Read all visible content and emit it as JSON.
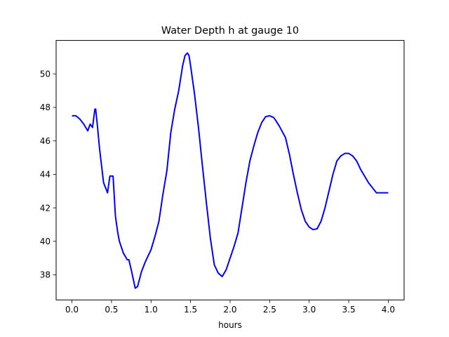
{
  "chart_data": {
    "type": "line",
    "title": "Water Depth h at gauge 10",
    "xlabel": "hours",
    "ylabel": "",
    "xlim": [
      -0.2,
      4.2
    ],
    "ylim": [
      36.5,
      52
    ],
    "xticks": [
      0.0,
      0.5,
      1.0,
      1.5,
      2.0,
      2.5,
      3.0,
      3.5,
      4.0
    ],
    "xtick_labels": [
      "0.0",
      "0.5",
      "1.0",
      "1.5",
      "2.0",
      "2.5",
      "3.0",
      "3.5",
      "4.0"
    ],
    "yticks": [
      38,
      40,
      42,
      44,
      46,
      48,
      50
    ],
    "ytick_labels": [
      "38",
      "40",
      "42",
      "44",
      "46",
      "48",
      "50"
    ],
    "grid": false,
    "series": [
      {
        "color": "#0000ff",
        "x": [
          0.0,
          0.05,
          0.1,
          0.15,
          0.2,
          0.23,
          0.26,
          0.29,
          0.3,
          0.32,
          0.35,
          0.4,
          0.45,
          0.48,
          0.52,
          0.55,
          0.58,
          0.6,
          0.65,
          0.7,
          0.72,
          0.75,
          0.8,
          0.83,
          0.88,
          0.93,
          1.0,
          1.05,
          1.1,
          1.15,
          1.2,
          1.25,
          1.3,
          1.35,
          1.4,
          1.43,
          1.46,
          1.48,
          1.5,
          1.55,
          1.6,
          1.65,
          1.7,
          1.75,
          1.8,
          1.85,
          1.9,
          1.95,
          2.0,
          2.05,
          2.1,
          2.15,
          2.2,
          2.25,
          2.3,
          2.35,
          2.4,
          2.45,
          2.5,
          2.55,
          2.58,
          2.62,
          2.7,
          2.75,
          2.8,
          2.85,
          2.9,
          2.95,
          3.0,
          3.05,
          3.1,
          3.15,
          3.2,
          3.25,
          3.3,
          3.35,
          3.4,
          3.45,
          3.5,
          3.55,
          3.6,
          3.65,
          3.7,
          3.75,
          3.8,
          3.85,
          3.9,
          3.93,
          4.0
        ],
        "y": [
          47.5,
          47.5,
          47.3,
          47.0,
          46.6,
          47.0,
          46.8,
          47.9,
          47.9,
          47.0,
          45.5,
          43.5,
          42.9,
          43.9,
          43.9,
          41.5,
          40.5,
          40.0,
          39.3,
          38.9,
          38.9,
          38.3,
          37.2,
          37.3,
          38.2,
          38.8,
          39.5,
          40.3,
          41.2,
          42.8,
          44.2,
          46.5,
          47.9,
          49.0,
          50.5,
          51.1,
          51.25,
          51.1,
          50.5,
          48.8,
          46.8,
          44.5,
          42.3,
          40.2,
          38.6,
          38.1,
          37.9,
          38.3,
          39.0,
          39.7,
          40.5,
          42.0,
          43.5,
          44.8,
          45.7,
          46.5,
          47.1,
          47.45,
          47.5,
          47.4,
          47.2,
          46.9,
          46.2,
          45.2,
          44.0,
          42.9,
          41.9,
          41.2,
          40.85,
          40.7,
          40.75,
          41.2,
          42.0,
          43.0,
          44.0,
          44.8,
          45.1,
          45.25,
          45.25,
          45.1,
          44.8,
          44.3,
          43.9,
          43.5,
          43.2,
          42.9,
          42.9,
          42.9,
          42.9
        ]
      }
    ]
  }
}
